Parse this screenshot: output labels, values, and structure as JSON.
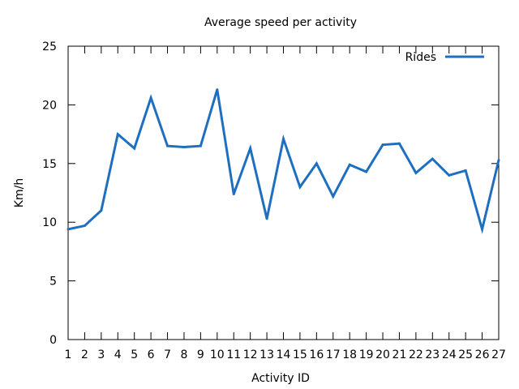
{
  "chart_data": {
    "type": "line",
    "title": "Average speed per activity",
    "xlabel": "Activity ID",
    "ylabel": "Km/h",
    "x": [
      1,
      2,
      3,
      4,
      5,
      6,
      7,
      8,
      9,
      10,
      11,
      12,
      13,
      14,
      15,
      16,
      17,
      18,
      19,
      20,
      21,
      22,
      23,
      24,
      25,
      26,
      27
    ],
    "xlim": [
      1,
      27
    ],
    "ylim": [
      0,
      25
    ],
    "yticks": [
      0,
      5,
      10,
      15,
      20,
      25
    ],
    "grid": false,
    "legend_position": "top-right",
    "series": [
      {
        "name": "Rides",
        "color": "#1f6fc0",
        "values": [
          9.4,
          9.7,
          11.0,
          17.5,
          16.3,
          20.6,
          16.5,
          16.4,
          16.5,
          21.3,
          12.4,
          16.3,
          10.3,
          17.1,
          13.0,
          15.0,
          12.2,
          14.9,
          14.3,
          16.6,
          16.7,
          14.2,
          15.4,
          14.0,
          14.4,
          9.4,
          15.3
        ]
      }
    ]
  }
}
